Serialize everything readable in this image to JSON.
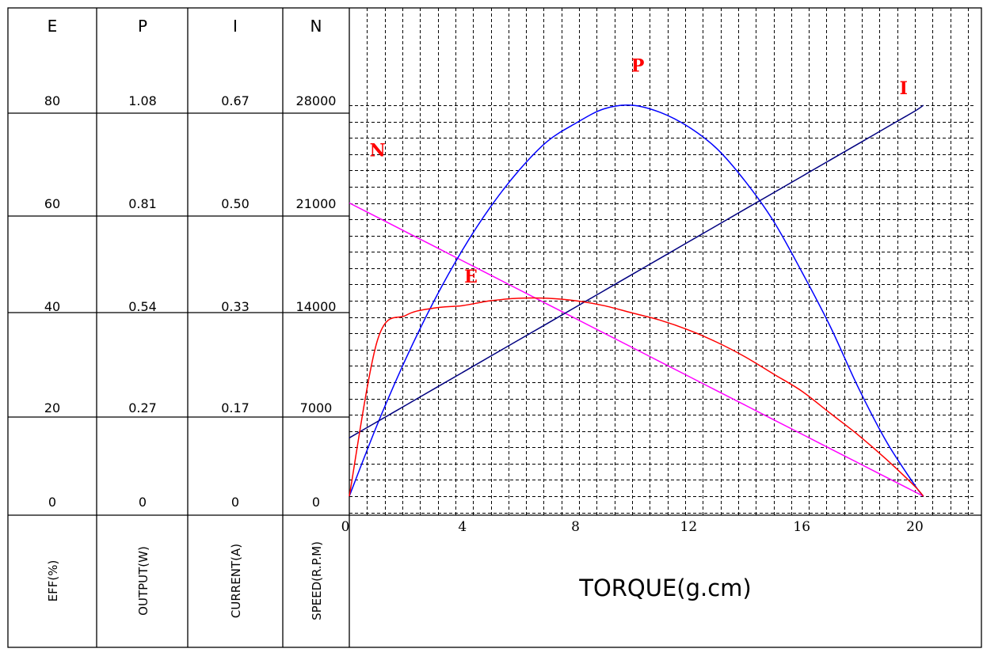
{
  "chart_data": {
    "type": "line",
    "xlabel": "TORQUE(g.cm)",
    "x_ticks": [
      "0",
      "4",
      "8",
      "12",
      "16",
      "20"
    ],
    "xlim": [
      0,
      22.7
    ],
    "x": [
      0,
      1,
      2,
      3,
      4,
      5,
      6,
      7,
      8,
      9,
      10,
      11,
      12,
      13,
      14,
      15,
      16,
      17,
      18,
      19,
      20,
      20.3
    ],
    "columns": [
      {
        "header": "E",
        "label": "EFF(%)",
        "ticks": [
          "80",
          "60",
          "40",
          "20",
          "0"
        ],
        "range": [
          0,
          80
        ]
      },
      {
        "header": "P",
        "label": "OUTPUT(W)",
        "ticks": [
          "1.08",
          "0.81",
          "0.54",
          "0.27",
          "0"
        ],
        "range": [
          0,
          1.08
        ]
      },
      {
        "header": "I",
        "label": "CURRENT(A)",
        "ticks": [
          "0.67",
          "0.50",
          "0.33",
          "0.17",
          "0"
        ],
        "range": [
          0,
          0.67
        ]
      },
      {
        "header": "N",
        "label": "SPEED(R.P.M)",
        "ticks": [
          "28000",
          "21000",
          "14000",
          "7000",
          "0"
        ],
        "range": [
          0,
          28000
        ]
      }
    ],
    "series": [
      {
        "name": "N",
        "color": "#ff00ff",
        "axis": 3,
        "values": [
          21000,
          19966,
          18931,
          17897,
          16862,
          15828,
          14793,
          13759,
          12724,
          11690,
          10655,
          9621,
          8586,
          7552,
          6517,
          5483,
          4448,
          3414,
          2379,
          1345,
          310,
          0
        ]
      },
      {
        "name": "P",
        "color": "#0000ff",
        "axis": 1,
        "values": [
          0,
          0.2,
          0.38,
          0.54,
          0.68,
          0.8,
          0.9,
          0.98,
          1.03,
          1.07,
          1.08,
          1.06,
          1.02,
          0.96,
          0.87,
          0.76,
          0.62,
          0.47,
          0.3,
          0.15,
          0.03,
          0
        ]
      },
      {
        "name": "I",
        "color": "#000080",
        "axis": 2,
        "values": [
          0.1,
          0.128,
          0.156,
          0.184,
          0.212,
          0.24,
          0.268,
          0.296,
          0.324,
          0.352,
          0.38,
          0.408,
          0.436,
          0.464,
          0.492,
          0.52,
          0.548,
          0.576,
          0.604,
          0.632,
          0.66,
          0.67
        ]
      },
      {
        "name": "E",
        "color": "#ff0000",
        "axis": 0,
        "values": [
          0,
          32,
          37,
          38.5,
          39,
          40,
          40.5,
          40.5,
          40,
          39,
          37.5,
          36,
          34,
          31.5,
          28.5,
          25,
          21.5,
          17,
          12.5,
          7.5,
          2,
          0
        ]
      }
    ],
    "curve_labels": [
      {
        "text": "N",
        "x": 1.0,
        "y": 24800,
        "axis": 3
      },
      {
        "text": "P",
        "x": 10.2,
        "y": 1.19,
        "axis": 1
      },
      {
        "text": "I",
        "x": 19.6,
        "y": 0.7,
        "axis": 2
      },
      {
        "text": "E",
        "x": 4.3,
        "y": 45,
        "axis": 0
      }
    ],
    "grid": "dashed"
  }
}
